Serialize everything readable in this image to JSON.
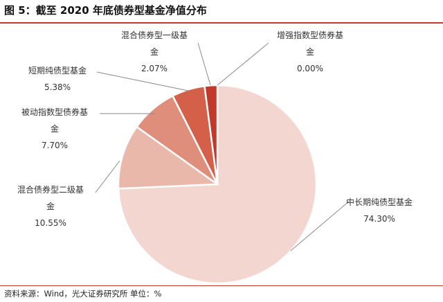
{
  "figure": {
    "title": "图 5：截至 2020 年底债券型基金净值分布",
    "source": "资料来源：Wind，光大证券研究所  单位：%"
  },
  "chart_data": {
    "type": "pie",
    "unit": "%",
    "slices": [
      {
        "label_lines": [
          "中长期纯债型基金"
        ],
        "value": 74.3,
        "value_text": "74.30%",
        "color": "#f2d6cf"
      },
      {
        "label_lines": [
          "混合债券型二级基",
          "金"
        ],
        "value": 10.55,
        "value_text": "10.55%",
        "color": "#eab8aa"
      },
      {
        "label_lines": [
          "被动指数型债券基",
          "金"
        ],
        "value": 7.7,
        "value_text": "7.70%",
        "color": "#de8e7a"
      },
      {
        "label_lines": [
          "短期纯债型基金"
        ],
        "value": 5.38,
        "value_text": "5.38%",
        "color": "#d5604a"
      },
      {
        "label_lines": [
          "混合债券型一级基",
          "金"
        ],
        "value": 2.07,
        "value_text": "2.07%",
        "color": "#c0392b"
      },
      {
        "label_lines": [
          "增强指数型债券基",
          "金"
        ],
        "value": 0.0,
        "value_text": "0.00%",
        "color": "#a02e22"
      }
    ]
  }
}
